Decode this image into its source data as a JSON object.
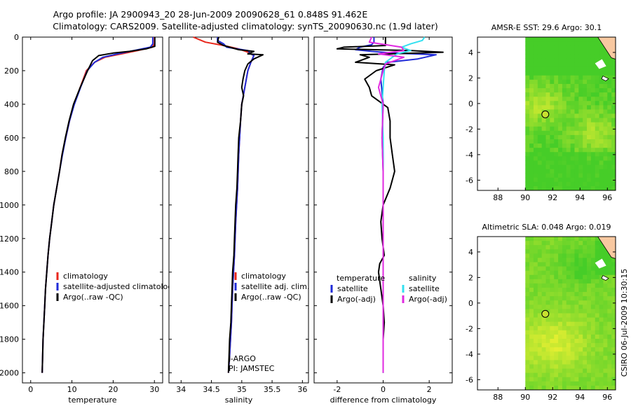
{
  "title": {
    "line1": "Argo profile: JA 2900943_20 28-Jun-2009 20090628_61 0.848S 91.462E",
    "line2": "Climatology: CARS2009. Satellite-adjusted climatology: synTS_20090630.nc (1.9d later)"
  },
  "credit": "CSIRO 06-Jul-2009 10:30:15",
  "colors": {
    "red": "#e8261b",
    "blue": "#1f2bd8",
    "black": "#000000",
    "cyan": "#33e0f0",
    "magenta": "#e02ae0",
    "land": "#f8c8a0"
  },
  "chart_data": [
    {
      "type": "line",
      "xlabel": "temperature",
      "xlim": [
        -2,
        32
      ],
      "xticks": [
        0,
        10,
        20,
        30
      ],
      "ylim": [
        0,
        2060
      ],
      "yticks": [
        0,
        200,
        400,
        600,
        800,
        1000,
        1200,
        1400,
        1600,
        1800,
        2000
      ],
      "legend": [
        "climatology",
        "satellite-adjusted climatology",
        "Argo(..raw -QC)"
      ],
      "series": [
        {
          "name": "climatology",
          "color": "red",
          "points": [
            [
              30,
              0
            ],
            [
              30,
              40
            ],
            [
              29.5,
              60
            ],
            [
              26,
              80
            ],
            [
              22,
              100
            ],
            [
              18,
              120
            ],
            [
              15.5,
              150
            ],
            [
              13.5,
              200
            ],
            [
              12,
              300
            ],
            [
              10.5,
              400
            ],
            [
              9.4,
              500
            ],
            [
              8.5,
              600
            ],
            [
              7.6,
              700
            ],
            [
              7,
              800
            ],
            [
              6.3,
              900
            ],
            [
              5.6,
              1000
            ],
            [
              5.1,
              1100
            ],
            [
              4.6,
              1200
            ],
            [
              4.2,
              1300
            ],
            [
              3.9,
              1400
            ],
            [
              3.6,
              1500
            ],
            [
              3.4,
              1600
            ],
            [
              3.2,
              1700
            ],
            [
              3,
              1800
            ],
            [
              2.9,
              1900
            ],
            [
              2.8,
              2000
            ]
          ]
        },
        {
          "name": "satellite-adjusted climatology",
          "color": "blue",
          "points": [
            [
              29.6,
              0
            ],
            [
              29.6,
              40
            ],
            [
              29,
              60
            ],
            [
              25,
              80
            ],
            [
              21,
              100
            ],
            [
              17.5,
              120
            ],
            [
              15.5,
              150
            ],
            [
              13.7,
              200
            ],
            [
              12.1,
              300
            ],
            [
              10.6,
              400
            ],
            [
              9.4,
              500
            ],
            [
              8.5,
              600
            ],
            [
              7.7,
              700
            ],
            [
              7,
              800
            ],
            [
              6.3,
              900
            ],
            [
              5.6,
              1000
            ],
            [
              5.1,
              1100
            ],
            [
              4.6,
              1200
            ],
            [
              4.2,
              1300
            ],
            [
              3.9,
              1400
            ],
            [
              3.6,
              1500
            ],
            [
              3.4,
              1600
            ],
            [
              3.2,
              1700
            ],
            [
              3,
              1800
            ],
            [
              2.9,
              1900
            ],
            [
              2.8,
              2000
            ]
          ]
        },
        {
          "name": "Argo(..raw -QC)",
          "color": "black",
          "points": [
            [
              30.1,
              0
            ],
            [
              30.1,
              55
            ],
            [
              28,
              70
            ],
            [
              24,
              85
            ],
            [
              20,
              95
            ],
            [
              16.5,
              110
            ],
            [
              15,
              140
            ],
            [
              13.8,
              200
            ],
            [
              12,
              300
            ],
            [
              10.4,
              400
            ],
            [
              9.3,
              500
            ],
            [
              8.4,
              600
            ],
            [
              7.6,
              700
            ],
            [
              7,
              800
            ],
            [
              6.3,
              900
            ],
            [
              5.6,
              1000
            ],
            [
              5.1,
              1100
            ],
            [
              4.6,
              1200
            ],
            [
              4.2,
              1300
            ],
            [
              3.9,
              1400
            ],
            [
              3.6,
              1500
            ],
            [
              3.4,
              1600
            ],
            [
              3.2,
              1700
            ],
            [
              3,
              1800
            ],
            [
              2.9,
              1900
            ],
            [
              2.8,
              2000
            ]
          ]
        }
      ]
    },
    {
      "type": "line",
      "xlabel": "salinity",
      "xlim": [
        33.8,
        36.1
      ],
      "xticks": [
        34,
        34.5,
        35,
        35.5,
        36
      ],
      "ylim": [
        0,
        2060
      ],
      "legend": [
        "climatology",
        "satellite adj. clim.",
        "Argo(..raw -QC)"
      ],
      "annotation": [
        "J-ARGO",
        "PI: JAMSTEC"
      ],
      "series": [
        {
          "name": "climatology",
          "color": "red",
          "points": [
            [
              34.2,
              0
            ],
            [
              34.4,
              30
            ],
            [
              34.7,
              50
            ],
            [
              34.95,
              70
            ],
            [
              35.1,
              90
            ],
            [
              35.2,
              110
            ],
            [
              35.15,
              150
            ],
            [
              35.1,
              200
            ],
            [
              35.05,
              300
            ],
            [
              35,
              400
            ],
            [
              34.98,
              500
            ],
            [
              34.95,
              700
            ],
            [
              34.93,
              900
            ],
            [
              34.9,
              1100
            ],
            [
              34.88,
              1300
            ],
            [
              34.85,
              1500
            ],
            [
              34.83,
              1700
            ],
            [
              34.8,
              1900
            ],
            [
              34.78,
              2000
            ]
          ]
        },
        {
          "name": "satellite adj. clim.",
          "color": "blue",
          "points": [
            [
              34.6,
              0
            ],
            [
              34.6,
              20
            ],
            [
              34.7,
              40
            ],
            [
              34.75,
              60
            ],
            [
              35.1,
              80
            ],
            [
              35.15,
              100
            ],
            [
              35.2,
              110
            ],
            [
              35.15,
              150
            ],
            [
              35.1,
              200
            ],
            [
              35.05,
              300
            ],
            [
              35,
              400
            ],
            [
              34.98,
              500
            ],
            [
              34.95,
              700
            ],
            [
              34.93,
              900
            ],
            [
              34.9,
              1100
            ],
            [
              34.88,
              1300
            ],
            [
              34.85,
              1500
            ],
            [
              34.83,
              1700
            ],
            [
              34.8,
              1900
            ],
            [
              34.78,
              2000
            ]
          ]
        },
        {
          "name": "Argo(..raw -QC)",
          "color": "black",
          "points": [
            [
              34.62,
              0
            ],
            [
              34.6,
              30
            ],
            [
              34.7,
              50
            ],
            [
              34.95,
              75
            ],
            [
              35.2,
              85
            ],
            [
              35.1,
              100
            ],
            [
              35.35,
              105
            ],
            [
              35.2,
              130
            ],
            [
              35.1,
              160
            ],
            [
              35.05,
              200
            ],
            [
              35.02,
              250
            ],
            [
              35,
              300
            ],
            [
              35.03,
              350
            ],
            [
              35,
              400
            ],
            [
              34.98,
              500
            ],
            [
              34.95,
              600
            ],
            [
              34.94,
              700
            ],
            [
              34.93,
              800
            ],
            [
              34.92,
              900
            ],
            [
              34.9,
              1000
            ],
            [
              34.89,
              1100
            ],
            [
              34.88,
              1200
            ],
            [
              34.87,
              1300
            ],
            [
              34.85,
              1400
            ],
            [
              34.84,
              1500
            ],
            [
              34.83,
              1600
            ],
            [
              34.82,
              1700
            ],
            [
              34.8,
              1800
            ],
            [
              34.79,
              1900
            ],
            [
              34.78,
              2000
            ]
          ]
        }
      ]
    },
    {
      "type": "line",
      "xlabel": "difference from climatology",
      "xlim": [
        -3,
        3
      ],
      "xticks": [
        -2,
        0,
        2
      ],
      "ylim": [
        0,
        2060
      ],
      "legend_left": {
        "title": "temperature",
        "items": [
          "satellite",
          "Argo(-adj)"
        ]
      },
      "legend_right": {
        "title": "salinity",
        "items": [
          "satellite",
          "Argo(-adj)"
        ]
      },
      "series": [
        {
          "name": "temperature satellite",
          "color": "blue",
          "points": [
            [
              -0.4,
              0
            ],
            [
              -0.4,
              30
            ],
            [
              -0.5,
              45
            ],
            [
              -1,
              60
            ],
            [
              -1.2,
              75
            ],
            [
              -0.5,
              85
            ],
            [
              0.4,
              95
            ],
            [
              2.3,
              105
            ],
            [
              1.5,
              130
            ],
            [
              0.2,
              150
            ],
            [
              0,
              180
            ],
            [
              -0.1,
              250
            ],
            [
              0,
              400
            ],
            [
              -0.05,
              600
            ],
            [
              0,
              800
            ],
            [
              0,
              1000
            ],
            [
              0,
              1400
            ],
            [
              0,
              2000
            ]
          ]
        },
        {
          "name": "temperature Argo(-adj)",
          "color": "black",
          "points": [
            [
              0.1,
              0
            ],
            [
              0.1,
              50
            ],
            [
              -1.7,
              60
            ],
            [
              -2,
              70
            ],
            [
              1.2,
              80
            ],
            [
              2.6,
              90
            ],
            [
              -1,
              105
            ],
            [
              -0.6,
              120
            ],
            [
              -1.2,
              150
            ],
            [
              0.5,
              165
            ],
            [
              -0.3,
              200
            ],
            [
              -0.8,
              250
            ],
            [
              -0.6,
              300
            ],
            [
              -0.5,
              350
            ],
            [
              0.2,
              420
            ],
            [
              0.3,
              500
            ],
            [
              0.3,
              600
            ],
            [
              0.4,
              700
            ],
            [
              0.5,
              800
            ],
            [
              0.3,
              900
            ],
            [
              0,
              1000
            ],
            [
              -0.1,
              1100
            ],
            [
              -0.05,
              1200
            ],
            [
              0.05,
              1300
            ],
            [
              -0.15,
              1350
            ],
            [
              -0.2,
              1400
            ],
            [
              -0.1,
              1500
            ],
            [
              0,
              1600
            ],
            [
              0.05,
              1700
            ],
            [
              0,
              1800
            ],
            [
              0,
              2000
            ]
          ]
        },
        {
          "name": "salinity satellite",
          "color": "cyan",
          "points": [
            [
              1.8,
              0
            ],
            [
              1.7,
              20
            ],
            [
              1.2,
              40
            ],
            [
              0.8,
              60
            ],
            [
              1.2,
              80
            ],
            [
              0.6,
              100
            ],
            [
              0.1,
              150
            ],
            [
              0.05,
              200
            ],
            [
              0,
              300
            ],
            [
              -0.05,
              400
            ],
            [
              0,
              600
            ],
            [
              0,
              1000
            ],
            [
              0,
              1500
            ],
            [
              0,
              2000
            ]
          ]
        },
        {
          "name": "salinity Argo(-adj)",
          "color": "magenta",
          "points": [
            [
              -0.5,
              0
            ],
            [
              -0.6,
              30
            ],
            [
              0.8,
              60
            ],
            [
              0.9,
              80
            ],
            [
              -0.2,
              100
            ],
            [
              0.9,
              120
            ],
            [
              0.1,
              160
            ],
            [
              0,
              200
            ],
            [
              -0.2,
              300
            ],
            [
              0,
              400
            ],
            [
              -0.05,
              600
            ],
            [
              0,
              800
            ],
            [
              0,
              1000
            ],
            [
              0,
              1500
            ],
            [
              0,
              2000
            ]
          ]
        }
      ]
    },
    {
      "type": "heatmap",
      "title": "AMSR-E SST: 29.6 Argo: 30.1",
      "xlim": [
        86.5,
        96.6
      ],
      "xticks": [
        88,
        90,
        92,
        94,
        96
      ],
      "ylim": [
        -6.8,
        5.2
      ],
      "yticks": [
        4,
        2,
        0,
        -2,
        -4,
        -6
      ],
      "data_xlim": [
        90,
        96.6
      ],
      "marker": [
        91.462,
        -0.848
      ],
      "land_x": 95.3,
      "land_y": 3.8
    },
    {
      "type": "heatmap",
      "title": "Altimetric SLA: 0.048 Argo: 0.019",
      "xlim": [
        86.5,
        96.6
      ],
      "xticks": [
        88,
        90,
        92,
        94,
        96
      ],
      "ylim": [
        -6.8,
        5.2
      ],
      "yticks": [
        4,
        2,
        0,
        -2,
        -4,
        -6
      ],
      "data_xlim": [
        90,
        96.6
      ],
      "marker": [
        91.462,
        -0.848
      ],
      "land_x": 95.3,
      "land_y": 3.8
    }
  ]
}
